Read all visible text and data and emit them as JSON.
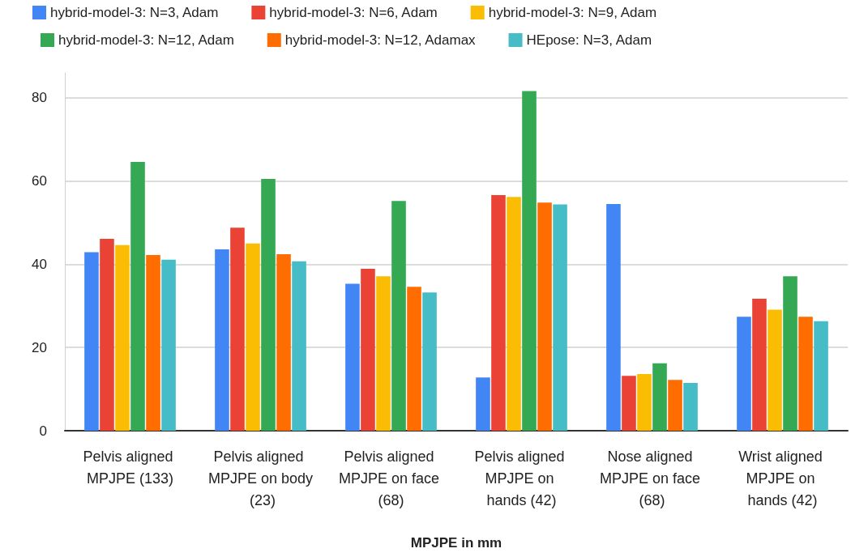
{
  "chart_data": {
    "type": "bar",
    "xlabel": "MPJPE in mm",
    "categories": [
      "Pelvis aligned MPJPE (133)",
      "Pelvis aligned MPJPE on body (23)",
      "Pelvis aligned MPJPE on face (68)",
      "Pelvis aligned MPJPE on hands (42)",
      "Nose aligned MPJPE on face (68)",
      "Wrist aligned MPJPE on hands (42)"
    ],
    "series": [
      {
        "name": "hybrid-model-3: N=3, Adam",
        "color": "#4285f4",
        "values": [
          42.9,
          43.6,
          35.3,
          12.8,
          54.5,
          27.4
        ]
      },
      {
        "name": "hybrid-model-3: N=6, Adam",
        "color": "#ea4335",
        "values": [
          46.1,
          48.8,
          38.9,
          56.6,
          13.2,
          31.7
        ]
      },
      {
        "name": "hybrid-model-3: N=9, Adam",
        "color": "#fbbc04",
        "values": [
          44.6,
          45.0,
          37.1,
          56.2,
          13.6,
          29.1
        ]
      },
      {
        "name": "hybrid-model-3: N=12, Adam",
        "color": "#34a853",
        "values": [
          64.6,
          60.5,
          55.2,
          81.6,
          16.2,
          37.1
        ]
      },
      {
        "name": "hybrid-model-3: N=12, Adamax",
        "color": "#ff6d01",
        "values": [
          42.2,
          42.4,
          34.6,
          54.8,
          12.2,
          27.4
        ]
      },
      {
        "name": "HEpose: N=3, Adam",
        "color": "#46bdc6",
        "values": [
          41.1,
          40.7,
          33.2,
          54.4,
          11.5,
          26.3
        ]
      }
    ],
    "ylim": [
      0,
      86
    ],
    "yticks": [
      0,
      20,
      40,
      60,
      80
    ],
    "grid": "y",
    "legend": "top"
  }
}
